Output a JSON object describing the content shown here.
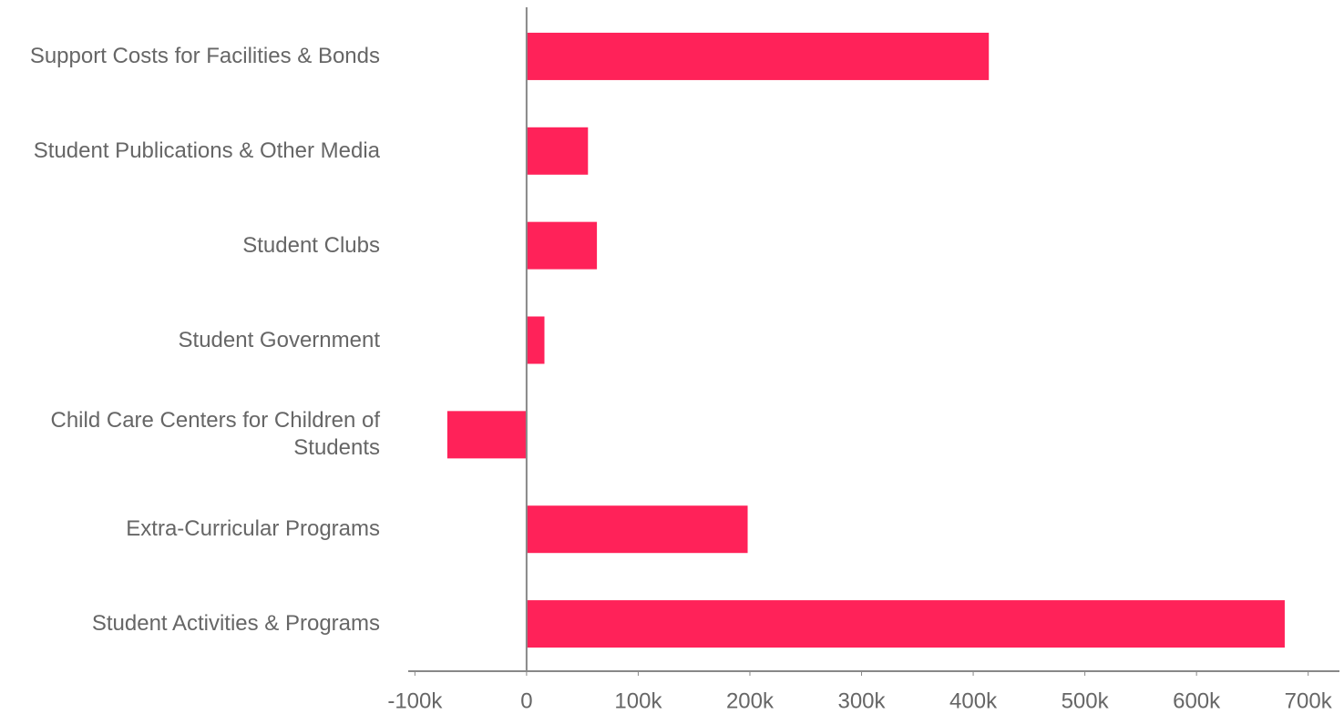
{
  "chart_data": {
    "type": "hbar",
    "categories": [
      "Support Costs for Facilities & Bonds",
      "Student Publications & Other Media",
      "Student Clubs",
      "Student Government",
      "Child Care Centers for Children of Students",
      "Extra-Curricular Programs",
      "Student Activities & Programs"
    ],
    "values": [
      414000,
      55000,
      63000,
      16000,
      -71000,
      198000,
      679000
    ],
    "color": "#ff2259",
    "xlim": [
      -106000,
      728000
    ],
    "xticks": [
      {
        "value": -100000,
        "label": "-100k"
      },
      0,
      {
        "value": 100000,
        "label": "100k"
      },
      {
        "value": 200000,
        "label": "200k"
      },
      {
        "value": 300000,
        "label": "300k"
      },
      {
        "value": 400000,
        "label": "400k"
      },
      {
        "value": 500000,
        "label": "500k"
      },
      {
        "value": 600000,
        "label": "600k"
      },
      {
        "value": 700000,
        "label": "700k"
      }
    ],
    "grid": false
  }
}
